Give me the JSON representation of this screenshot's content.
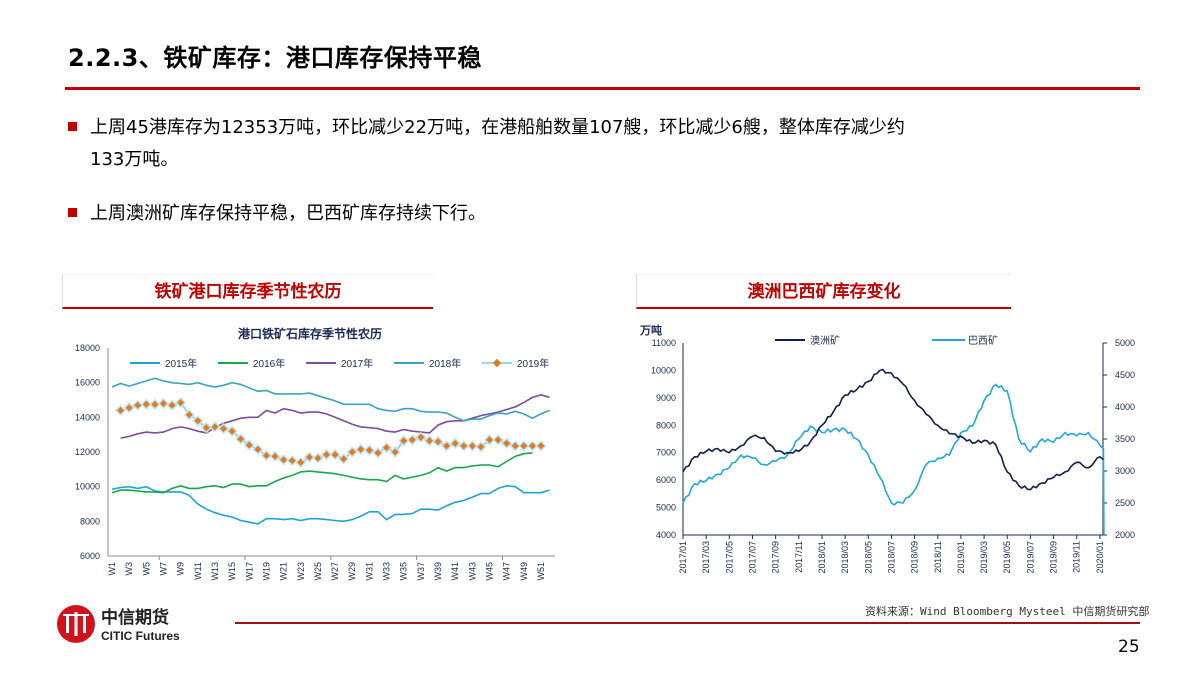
{
  "title": "2.2.3、铁矿库存：港口库存保持平稳",
  "bullets": [
    {
      "line1": "上周45港库存为12353万吨，环比减少22万吨，在港船舶数量107艘，环比减少6艘，整体库存减少约",
      "line2": "133万吨。"
    },
    {
      "line1": "上周澳洲矿库存保持平稳，巴西矿库存持续下行。"
    }
  ],
  "left_panel_title": "铁矿港口库存季节性农历",
  "right_panel_title": "澳洲巴西矿库存变化",
  "footer": {
    "source": "资料来源：Wind Bloomberg Mysteel 中信期货研究部",
    "page": "25",
    "logo_cn": "中信期货",
    "logo_en": "CITIC Futures"
  },
  "colors": {
    "accent": "#c00000",
    "s2015": "#1fa3d6",
    "s2016": "#1aa64a",
    "s2017": "#7f4b9a",
    "s2018": "#3aa3bf",
    "s2019_line": "#9dd3e6",
    "s2019_marker": "#e07b20",
    "aus": "#0f1f4b",
    "bra": "#1fa8e0"
  },
  "chart_data": [
    {
      "type": "line",
      "title": "港口铁矿石库存季节性农历",
      "ylim": [
        6000,
        18000
      ],
      "yticks": [
        6000,
        8000,
        10000,
        12000,
        14000,
        16000,
        18000
      ],
      "x": [
        "W1",
        "W2",
        "W3",
        "W4",
        "W5",
        "W6",
        "W7",
        "W8",
        "W9",
        "W10",
        "W11",
        "W12",
        "W13",
        "W14",
        "W15",
        "W16",
        "W17",
        "W18",
        "W19",
        "W20",
        "W21",
        "W22",
        "W23",
        "W24",
        "W25",
        "W26",
        "W27",
        "W28",
        "W29",
        "W30",
        "W31",
        "W32",
        "W33",
        "W34",
        "W35",
        "W36",
        "W37",
        "W38",
        "W39",
        "W40",
        "W41",
        "W42",
        "W43",
        "W44",
        "W45",
        "W46",
        "W47",
        "W48",
        "W49",
        "W50",
        "W51",
        "W52"
      ],
      "xticks": [
        "W1",
        "W3",
        "W5",
        "W7",
        "W9",
        "W11",
        "W13",
        "W15",
        "W17",
        "W19",
        "W21",
        "W23",
        "W25",
        "W27",
        "W29",
        "W31",
        "W33",
        "W35",
        "W37",
        "W39",
        "W41",
        "W43",
        "W45",
        "W47",
        "W49",
        "W51"
      ],
      "legend": "top",
      "grid": false,
      "series": [
        {
          "name": "2015年",
          "values": [
            9850,
            9950,
            10000,
            9900,
            10000,
            9750,
            9700,
            9700,
            9700,
            9500,
            9000,
            8700,
            8500,
            8350,
            8250,
            8050,
            7950,
            7850,
            8150,
            8150,
            8100,
            8150,
            8050,
            8150,
            8150,
            8100,
            8050,
            8000,
            8100,
            8300,
            8550,
            8550,
            8100,
            8400,
            8400,
            8450,
            8700,
            8700,
            8650,
            8900,
            9100,
            9200,
            9400,
            9600,
            9600,
            9900,
            10050,
            10000,
            9650,
            9650,
            9650,
            9800
          ]
        },
        {
          "name": "2016年",
          "values": [
            9650,
            9800,
            9800,
            9750,
            9700,
            9700,
            9650,
            9900,
            10050,
            9900,
            9900,
            10000,
            10050,
            9950,
            10150,
            10150,
            10000,
            10050,
            10050,
            10300,
            10500,
            10650,
            10850,
            10900,
            10850,
            10800,
            10750,
            10650,
            10550,
            10450,
            10400,
            10400,
            10300,
            10650,
            10450,
            10550,
            10650,
            10800,
            11100,
            10900,
            11100,
            11100,
            11200,
            11250,
            11250,
            11150,
            11450,
            11750,
            11900,
            11950,
            null,
            null
          ]
        },
        {
          "name": "2017年",
          "values": [
            null,
            12800,
            12900,
            13050,
            13150,
            13100,
            13150,
            13350,
            13450,
            13350,
            13200,
            13100,
            13400,
            13650,
            13800,
            13950,
            14000,
            14000,
            14400,
            14250,
            14500,
            14400,
            14250,
            14300,
            14300,
            14200,
            14000,
            13800,
            13600,
            13450,
            13400,
            13350,
            13200,
            13150,
            13300,
            13200,
            13150,
            13100,
            13550,
            13750,
            13800,
            13800,
            13950,
            14100,
            14200,
            14300,
            14450,
            14600,
            14850,
            15150,
            15300,
            15150
          ]
        },
        {
          "name": "2018年",
          "values": [
            15750,
            15950,
            15800,
            15950,
            16100,
            16250,
            16100,
            16000,
            15950,
            15900,
            16000,
            15850,
            15750,
            15850,
            16000,
            15900,
            15700,
            15500,
            15550,
            15350,
            15350,
            15350,
            15350,
            15400,
            15250,
            15100,
            14950,
            14750,
            14750,
            14750,
            14750,
            14500,
            14400,
            14350,
            14500,
            14500,
            14350,
            14300,
            14300,
            14250,
            14000,
            13800,
            13900,
            13900,
            14100,
            14250,
            14200,
            14350,
            14200,
            13950,
            14200,
            14400
          ]
        },
        {
          "name": "2019年",
          "values": [
            null,
            14400,
            14550,
            14700,
            14750,
            14750,
            14800,
            14700,
            14850,
            14150,
            13800,
            13400,
            13450,
            13350,
            13200,
            12750,
            12400,
            12150,
            11800,
            11750,
            11550,
            11500,
            11400,
            11700,
            11650,
            11850,
            11850,
            11600,
            12000,
            12150,
            12100,
            11950,
            12250,
            12000,
            12650,
            12700,
            12850,
            12650,
            12600,
            12350,
            12500,
            12350,
            12350,
            12300,
            12700,
            12700,
            12500,
            12350,
            12350,
            12350,
            12353,
            null
          ]
        }
      ]
    },
    {
      "type": "line",
      "ylabel": "万吨",
      "ylim": [
        4000,
        11000
      ],
      "yticks": [
        4000,
        5000,
        6000,
        7000,
        8000,
        9000,
        10000,
        11000
      ],
      "y2lim": [
        2000,
        5000
      ],
      "y2ticks": [
        2000,
        2500,
        3000,
        3500,
        4000,
        4500,
        5000
      ],
      "xticks": [
        "2017/01",
        "2017/03",
        "2017/05",
        "2017/07",
        "2017/09",
        "2017/11",
        "2018/01",
        "2018/03",
        "2018/05",
        "2018/07",
        "2018/09",
        "2018/11",
        "2019/01",
        "2019/03",
        "2019/05",
        "2019/07",
        "2019/09",
        "2019/11",
        "2020/01"
      ],
      "x": [
        "2017/01",
        "2017/02",
        "2017/03",
        "2017/04",
        "2017/05",
        "2017/06",
        "2017/07",
        "2017/08",
        "2017/09",
        "2017/10",
        "2017/11",
        "2017/12",
        "2018/01",
        "2018/02",
        "2018/03",
        "2018/04",
        "2018/05",
        "2018/06",
        "2018/07",
        "2018/08",
        "2018/09",
        "2018/10",
        "2018/11",
        "2018/12",
        "2019/01",
        "2019/02",
        "2019/03",
        "2019/04",
        "2019/05",
        "2019/06",
        "2019/07",
        "2019/08",
        "2019/09",
        "2019/10",
        "2019/11",
        "2019/12",
        "2020/01"
      ],
      "legend": "top",
      "grid": false,
      "series": [
        {
          "name": "澳洲矿",
          "axis": "left",
          "values": [
            6300,
            6850,
            7050,
            7150,
            7000,
            7250,
            7600,
            7550,
            7050,
            7000,
            7050,
            7400,
            8000,
            8500,
            9100,
            9300,
            9600,
            10000,
            9900,
            9500,
            8900,
            8400,
            8000,
            7700,
            7600,
            7350,
            7450,
            7300,
            6300,
            5800,
            5650,
            5900,
            6100,
            6300,
            6650,
            6450,
            6850
          ]
        },
        {
          "name": "巴西矿",
          "axis": "right",
          "values": [
            2500,
            2800,
            2850,
            2950,
            3050,
            3250,
            3200,
            3100,
            3150,
            3250,
            3500,
            3700,
            3600,
            3650,
            3650,
            3500,
            3250,
            2900,
            2500,
            2500,
            2700,
            3100,
            3200,
            3250,
            3600,
            3700,
            4100,
            4350,
            4250,
            3500,
            3300,
            3500,
            3450,
            3600,
            3550,
            3600,
            3400
          ]
        }
      ]
    }
  ]
}
